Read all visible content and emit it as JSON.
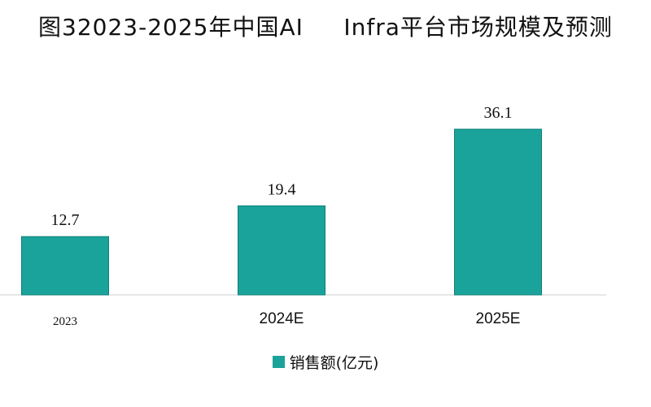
{
  "colors": {
    "bar": "#1aa39a",
    "bar_edge": "#0d7f78",
    "axis": "#cfcfcf"
  },
  "chart_data": {
    "type": "bar",
    "title": "图32023-2025年中国AI     Infra平台市场规模及预测",
    "categories": [
      "2023",
      "2024E",
      "2025E"
    ],
    "series": [
      {
        "name": "销售额(亿元)",
        "values": [
          12.7,
          19.4,
          36.1
        ]
      }
    ],
    "data_labels": [
      "12.7",
      "19.4",
      "36.1"
    ],
    "ylim": [
      0,
      40
    ],
    "xlabel": "",
    "ylabel": "",
    "grid": false,
    "legend": "bottom-center"
  }
}
